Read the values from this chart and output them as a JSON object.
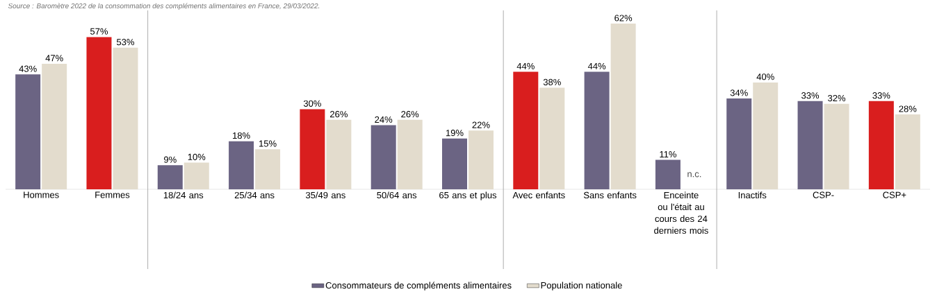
{
  "chart_data": {
    "type": "bar",
    "categories": [
      "Hommes",
      "Femmes",
      "18/24 ans",
      "25/34 ans",
      "35/49 ans",
      "50/64 ans",
      "65 ans et plus",
      "Avec enfants",
      "Sans enfants",
      "Enceinte ou l'était au cours des 24 derniers mois",
      "Inactifs",
      "CSP-",
      "CSP+"
    ],
    "series": [
      {
        "name": "Consommateurs de compléments alimentaires",
        "colors": [
          "#6b6483",
          "#d91e1e",
          "#6b6483",
          "#6b6483",
          "#d91e1e",
          "#6b6483",
          "#6b6483",
          "#d91e1e",
          "#6b6483",
          "#6b6483",
          "#6b6483",
          "#6b6483",
          "#d91e1e"
        ],
        "values": [
          43,
          57,
          9,
          18,
          30,
          24,
          19,
          44,
          44,
          11,
          34,
          33,
          33
        ],
        "value_labels": [
          "43%",
          "57%",
          "9%",
          "18%",
          "30%",
          "24%",
          "19%",
          "44%",
          "44%",
          "11%",
          "34%",
          "33%",
          "33%"
        ]
      },
      {
        "name": "Population nationale",
        "color": "#e3dccd",
        "values": [
          47,
          53,
          10,
          15,
          26,
          26,
          22,
          38,
          62,
          null,
          40,
          32,
          28
        ],
        "value_labels": [
          "47%",
          "53%",
          "10%",
          "15%",
          "26%",
          "26%",
          "22%",
          "38%",
          "62%",
          "n.c.",
          "40%",
          "32%",
          "28%"
        ]
      }
    ],
    "legend": "bottom",
    "annotations": [
      "Source : Baromètre 2022 de la consommation des compléments alimentaires en France, 29/03/2022."
    ]
  }
}
